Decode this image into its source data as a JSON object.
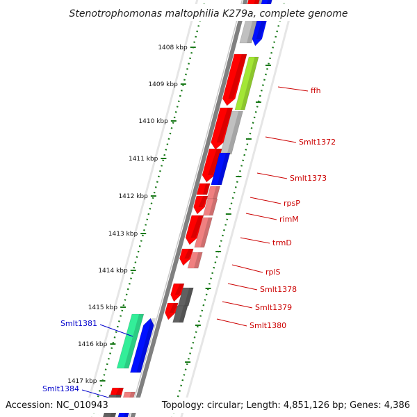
{
  "title": "Stenotrophomonas maltophilia K279a, complete genome",
  "accession": "Accession: NC_010943",
  "topology": "Topology: circular; Length: 4,851,126 bp; Genes: 4,386",
  "ticks": [
    "1408 kbp",
    "1409 kbp",
    "1410 kbp",
    "1411 kbp",
    "1412 kbp",
    "1413 kbp",
    "1414 kbp",
    "1415 kbp",
    "1416 kbp",
    "1417 kbp"
  ],
  "right_labels": [
    "ffh",
    "Smlt1372",
    "Smlt1373",
    "rpsP",
    "rimM",
    "trmD",
    "rplS",
    "Smlt1378",
    "Smlt1379",
    "Smlt1380"
  ],
  "left_labels": [
    "Smlt1381",
    "Smlt1384"
  ],
  "colors": {
    "red": "#ff0000",
    "pink": "#f08080",
    "lime": "#a3e635",
    "light-gray": "#c0c0c0",
    "dark-gray": "#606060",
    "blue": "#0010ff",
    "mint": "#33ee99",
    "backbone": "#808080",
    "tick-green": "#1a7a1a",
    "right-label": "#cc0000",
    "left-label": "#0000cc"
  }
}
